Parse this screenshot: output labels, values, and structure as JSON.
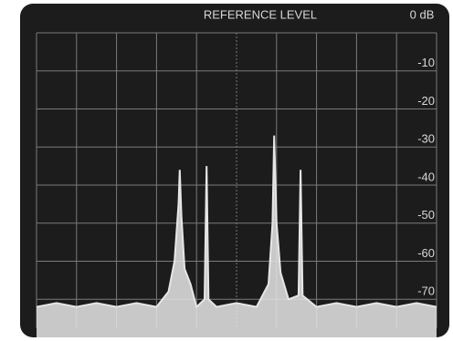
{
  "chart_data": {
    "type": "line",
    "title": "REFERENCE LEVEL",
    "subtitle": "0 dB",
    "xlim": [
      0,
      10
    ],
    "xgrid": [
      0,
      1,
      2,
      3,
      4,
      5,
      6,
      7,
      8,
      9,
      10
    ],
    "ylim": [
      0,
      -80
    ],
    "yticks": [
      -10,
      -20,
      -30,
      -40,
      -50,
      -60,
      -70
    ],
    "grid": true,
    "series": [
      {
        "color": "#e6e6e6",
        "x": [
          0,
          0.5,
          1,
          1.5,
          2,
          2.5,
          3,
          3.3,
          3.45,
          3.55,
          3.58,
          3.62,
          3.7,
          3.85,
          4.0,
          4.2,
          4.25,
          4.3,
          4.5,
          5,
          5.5,
          5.8,
          5.9,
          5.94,
          6.0,
          6.1,
          6.3,
          6.55,
          6.6,
          6.65,
          7,
          7.5,
          8,
          8.5,
          9,
          9.5,
          10
        ],
        "values": [
          -72,
          -71,
          -72,
          -71,
          -72,
          -71,
          -72,
          -68,
          -60,
          -45,
          -36,
          -48,
          -62,
          -66,
          -72,
          -70,
          -35,
          -70,
          -72,
          -71,
          -72,
          -66,
          -50,
          -27,
          -50,
          -63,
          -70,
          -69,
          -36,
          -69,
          -72,
          -71,
          -72,
          -71,
          -72,
          -71,
          -72
        ]
      }
    ]
  }
}
